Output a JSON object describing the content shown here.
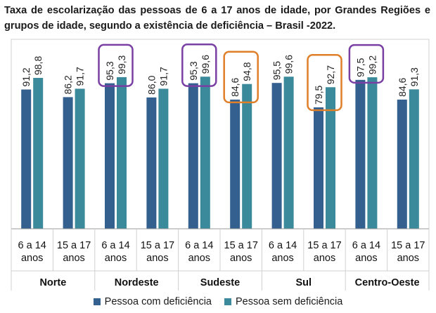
{
  "title": "Taxa de escolarização das pessoas de 6 a 17 anos de idade, por Grandes Regiões  e grupos de idade, segundo a existência de deficiência – Brasil -2022.",
  "colors": {
    "com": "#33608f",
    "sem": "#3a8a9b",
    "highlight_purple": "#7a3fa3",
    "highlight_orange": "#df7f2a",
    "grid": "#d0d0d0"
  },
  "chart_data": {
    "type": "bar",
    "title": "Taxa de escolarização das pessoas de 6 a 17 anos de idade, por Grandes Regiões  e grupos de idade, segundo a existência de deficiência – Brasil -2022.",
    "regions": [
      "Norte",
      "Nordeste",
      "Sudeste",
      "Sul",
      "Centro-Oeste"
    ],
    "age_groups": [
      "6 a 14 anos",
      "15 a 17 anos"
    ],
    "categories": [
      {
        "region": "Norte",
        "age": [
          "6 a 14",
          "anos"
        ]
      },
      {
        "region": "Norte",
        "age": [
          "15 a 17",
          "anos"
        ]
      },
      {
        "region": "Nordeste",
        "age": [
          "6 a 14",
          "anos"
        ]
      },
      {
        "region": "Nordeste",
        "age": [
          "15 a 17",
          "anos"
        ]
      },
      {
        "region": "Sudeste",
        "age": [
          "6 a 14",
          "anos"
        ]
      },
      {
        "region": "Sudeste",
        "age": [
          "15 a 17",
          "anos"
        ]
      },
      {
        "region": "Sul",
        "age": [
          "6 a 14",
          "anos"
        ]
      },
      {
        "region": "Sul",
        "age": [
          "15 a 17",
          "anos"
        ]
      },
      {
        "region": "Centro-Oeste",
        "age": [
          "6 a 14",
          "anos"
        ]
      },
      {
        "region": "Centro-Oeste",
        "age": [
          "15 a 17",
          "anos"
        ]
      }
    ],
    "series": [
      {
        "name": "Pessoa com deficiência",
        "values": [
          91.2,
          86.2,
          95.3,
          86.0,
          95.3,
          84.6,
          95.5,
          79.5,
          97.5,
          84.6
        ],
        "labels": [
          "91,2",
          "86,2",
          "95,3",
          "86,0",
          "95,3",
          "84,6",
          "95,5",
          "79,5",
          "97,5",
          "84,6"
        ]
      },
      {
        "name": "Pessoa sem deficiência",
        "values": [
          98.8,
          91.7,
          99.3,
          91.7,
          99.6,
          94.8,
          99.6,
          92.7,
          99.2,
          91.3
        ],
        "labels": [
          "98,8",
          "91,7",
          "99,3",
          "91,7",
          "99,6",
          "94,8",
          "99,6",
          "92,7",
          "99,2",
          "91,3"
        ]
      }
    ],
    "highlights": [
      {
        "category": 2,
        "color": "purple"
      },
      {
        "category": 4,
        "color": "purple"
      },
      {
        "category": 5,
        "color": "orange"
      },
      {
        "category": 7,
        "color": "orange"
      },
      {
        "category": 8,
        "color": "purple"
      }
    ],
    "legend": "bottom",
    "grid": false
  }
}
